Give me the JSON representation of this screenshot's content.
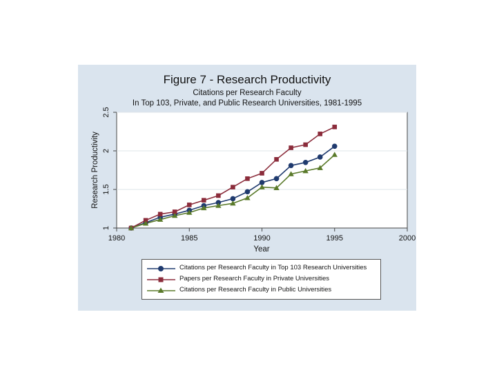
{
  "chart_data": {
    "type": "line",
    "title": "Figure 7 - Research Productivity",
    "subtitle_lines": [
      "Citations per Research Faculty",
      "In Top 103, Private, and Public Research Universities, 1981-1995"
    ],
    "xlabel": "Year",
    "ylabel": "Research Productivity",
    "xlim": [
      1980,
      2000
    ],
    "ylim": [
      1,
      2.5
    ],
    "xticks": [
      1980,
      1985,
      1990,
      1995,
      2000
    ],
    "yticks": [
      1,
      1.5,
      2,
      2.5
    ],
    "ytick_labels": [
      "1",
      "1.5",
      "2",
      "2.5"
    ],
    "x": [
      1981,
      1982,
      1983,
      1984,
      1985,
      1986,
      1987,
      1988,
      1989,
      1990,
      1991,
      1992,
      1993,
      1994,
      1995
    ],
    "series": [
      {
        "name": "Citations per Research Faculty in Top 103 Research Universities",
        "color": "#1f3a6e",
        "marker": "circle",
        "values": [
          1.0,
          1.07,
          1.14,
          1.18,
          1.23,
          1.29,
          1.33,
          1.38,
          1.47,
          1.59,
          1.64,
          1.81,
          1.85,
          1.92,
          2.06
        ]
      },
      {
        "name": "Papers per Research Faculty in Private Universities",
        "color": "#8b2c3b",
        "marker": "square",
        "values": [
          1.0,
          1.1,
          1.18,
          1.21,
          1.3,
          1.36,
          1.42,
          1.53,
          1.64,
          1.71,
          1.89,
          2.04,
          2.08,
          2.22,
          2.31
        ]
      },
      {
        "name": "Citations per Research Faculty in Public Universities",
        "color": "#5a7a2a",
        "marker": "triangle",
        "values": [
          1.0,
          1.06,
          1.11,
          1.16,
          1.2,
          1.26,
          1.29,
          1.32,
          1.39,
          1.53,
          1.52,
          1.7,
          1.74,
          1.78,
          1.95
        ]
      }
    ],
    "grid": true,
    "legend_position": "bottom"
  }
}
